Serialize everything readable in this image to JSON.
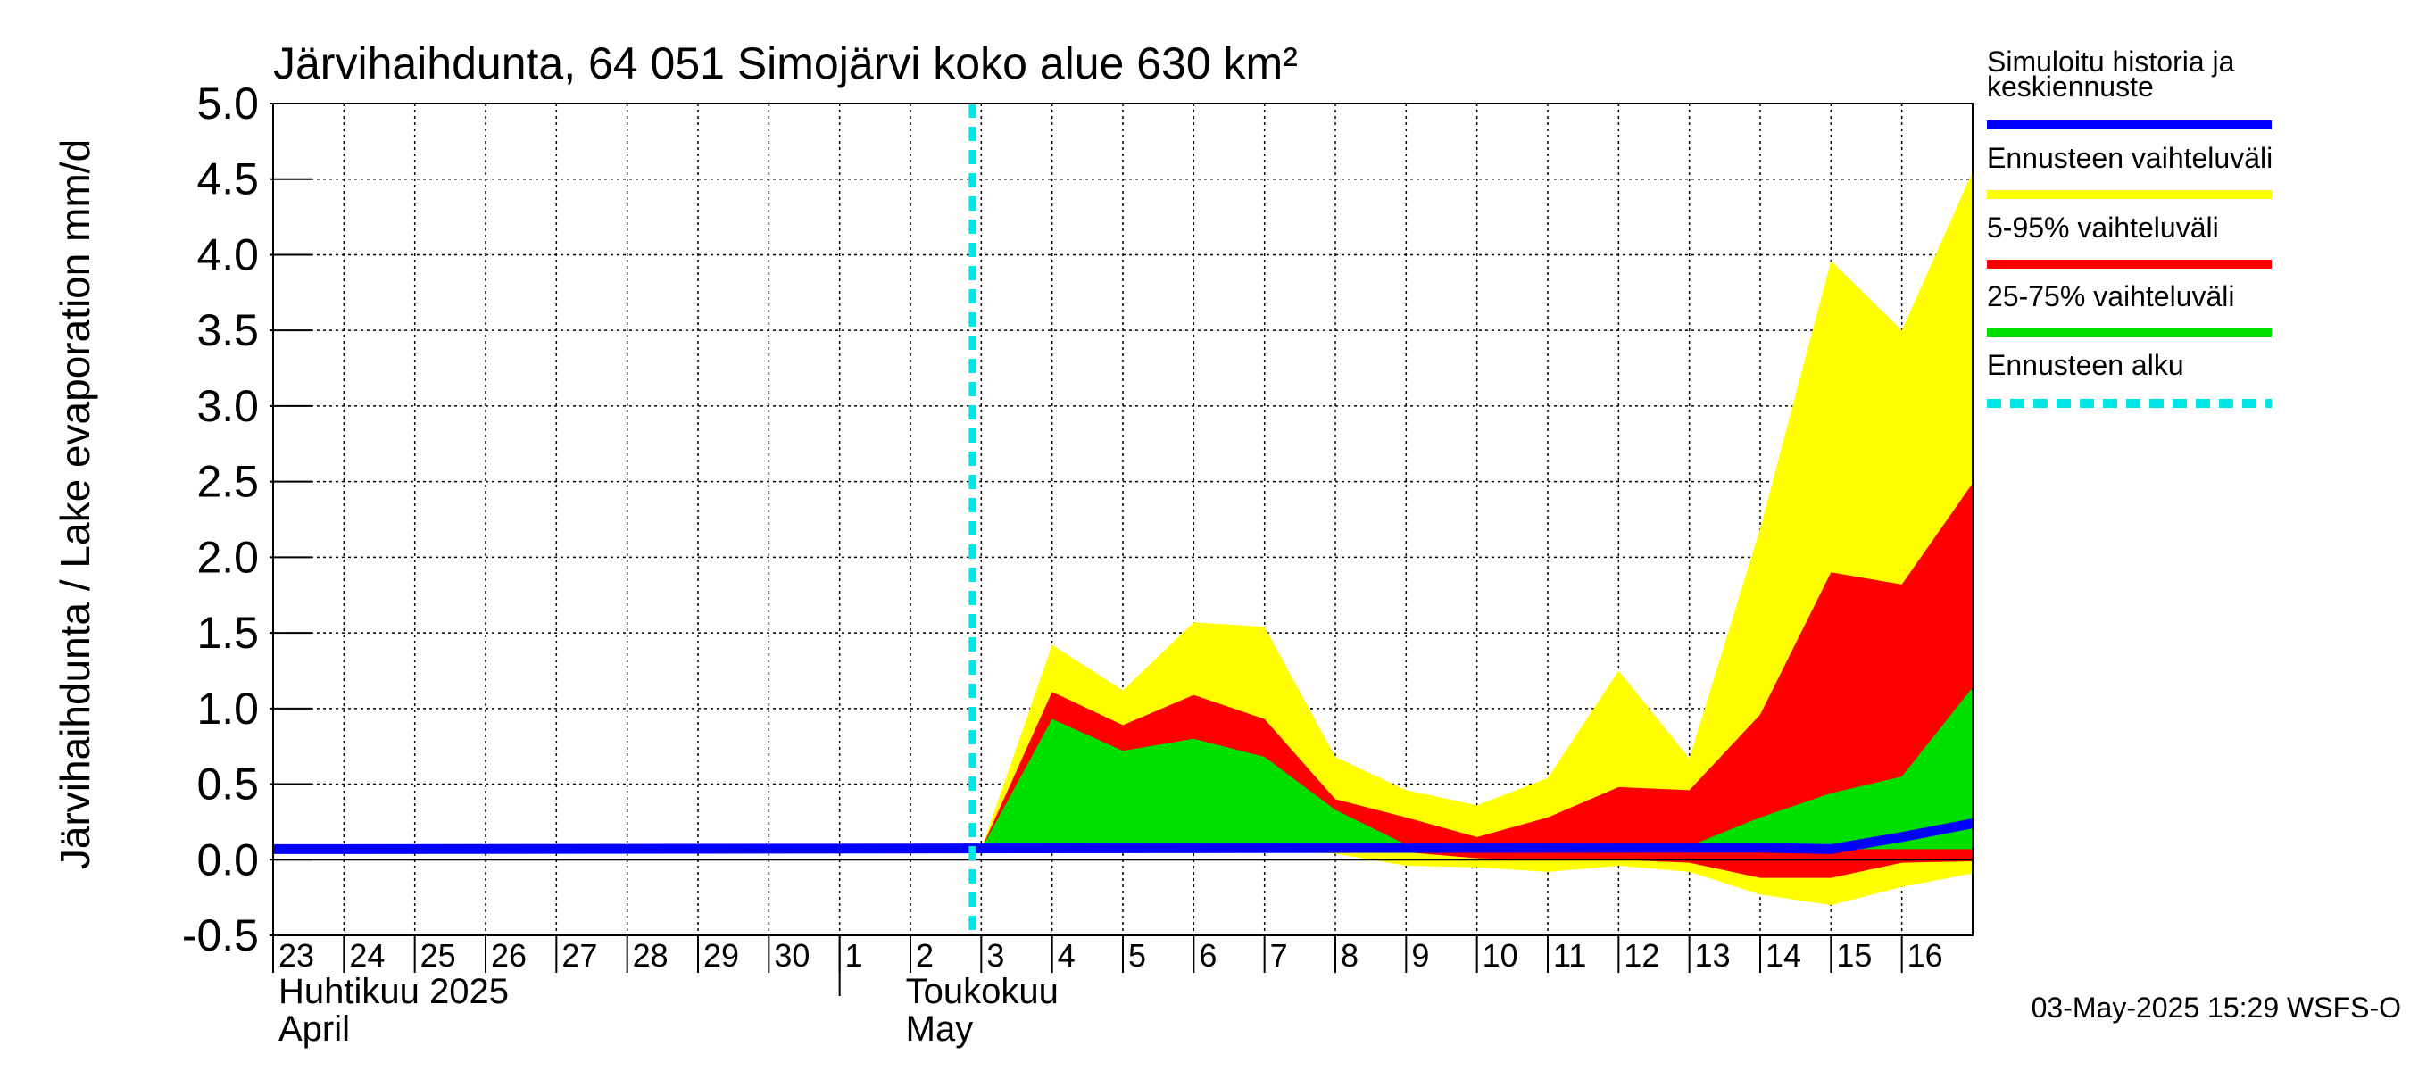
{
  "chart_data": {
    "type": "area",
    "title": "Järvihaihdunta, 64 051 Simojärvi koko alue 630 km²",
    "ylabel": "Järvihaihdunta / Lake evaporation   mm/d",
    "ylim": [
      -0.5,
      5.0
    ],
    "yticks": [
      -0.5,
      0.0,
      0.5,
      1.0,
      1.5,
      2.0,
      2.5,
      3.0,
      3.5,
      4.0,
      4.5,
      5.0
    ],
    "ytick_labels": [
      "-0.5",
      "0.0",
      "0.5",
      "1.0",
      "1.5",
      "2.0",
      "2.5",
      "3.0",
      "3.5",
      "4.0",
      "4.5",
      "5.0"
    ],
    "x_days": [
      "23",
      "24",
      "25",
      "26",
      "27",
      "28",
      "29",
      "30",
      "1",
      "2",
      "3",
      "4",
      "5",
      "6",
      "7",
      "8",
      "9",
      "10",
      "11",
      "12",
      "13",
      "14",
      "15",
      "16"
    ],
    "month_labels": [
      {
        "fi": "Huhtikuu  2025",
        "en": "April",
        "start_day_index": 0
      },
      {
        "fi": "Toukokuu",
        "en": "May",
        "start_day_index": 8
      }
    ],
    "grid": true,
    "forecast_start_index": 10,
    "band_x": [
      10,
      11,
      12,
      13,
      14,
      15,
      16,
      17,
      18,
      19,
      20,
      21,
      22,
      23,
      24
    ],
    "bands": {
      "full_range": {
        "upper": [
          0.07,
          1.42,
          1.12,
          1.57,
          1.54,
          0.68,
          0.46,
          0.36,
          0.54,
          1.25,
          0.67,
          2.19,
          3.96,
          3.5,
          4.55
        ],
        "lower": [
          0.07,
          0.07,
          0.07,
          0.07,
          0.07,
          0.04,
          -0.04,
          -0.05,
          -0.08,
          -0.04,
          -0.08,
          -0.23,
          -0.3,
          -0.18,
          -0.09
        ]
      },
      "p5_95": {
        "upper": [
          0.07,
          1.11,
          0.89,
          1.09,
          0.93,
          0.4,
          0.28,
          0.15,
          0.28,
          0.48,
          0.46,
          0.96,
          1.9,
          1.82,
          2.49
        ],
        "lower": [
          0.07,
          0.07,
          0.07,
          0.07,
          0.07,
          0.07,
          0.05,
          0.01,
          0.0,
          0.0,
          -0.02,
          -0.12,
          -0.12,
          -0.02,
          -0.01
        ]
      },
      "p25_75": {
        "upper": [
          0.07,
          0.93,
          0.72,
          0.8,
          0.68,
          0.33,
          0.1,
          0.08,
          0.08,
          0.08,
          0.09,
          0.28,
          0.44,
          0.55,
          1.14
        ]
      }
    },
    "median": {
      "x": [
        0,
        21,
        22,
        23,
        24
      ],
      "y": [
        0.07,
        0.08,
        0.07,
        0.15,
        0.24
      ]
    },
    "legend": [
      {
        "label": "Simuloitu historia ja\nkeskiennuste",
        "color": "#0000ff",
        "style": "solid"
      },
      {
        "label": "Ennusteen vaihteluväli",
        "color": "#ffff00",
        "style": "solid"
      },
      {
        "label": "5-95% vaihteluväli",
        "color": "#ff0000",
        "style": "solid"
      },
      {
        "label": "25-75% vaihteluväli",
        "color": "#00e000",
        "style": "solid"
      },
      {
        "label": "Ennusteen alku",
        "color": "#00e5e5",
        "style": "dashed"
      }
    ],
    "legend_placement": "right",
    "footer": "03-May-2025 15:29 WSFS-O",
    "colors": {
      "full_range": "#ffff00",
      "p5_95": "#ff0000",
      "p25_75": "#00e000",
      "median": "#0000ff",
      "forecast_line": "#00e5e5"
    }
  }
}
